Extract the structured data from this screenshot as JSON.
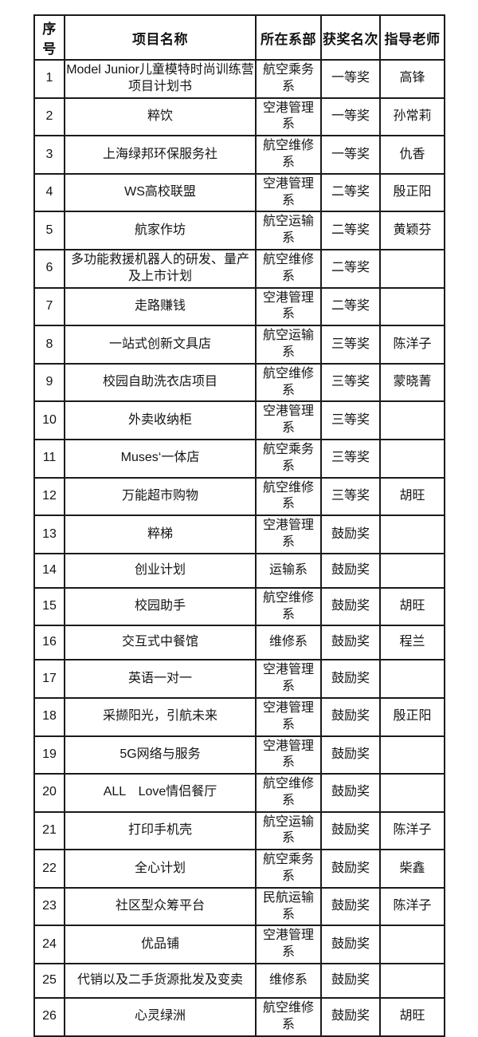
{
  "colors": {
    "border": "#1b1b1b",
    "background": "#ffffff",
    "text": "#141414"
  },
  "table": {
    "headers": {
      "no": "序号",
      "project": "项目名称",
      "dept": "所在系部",
      "award": "获奖名次",
      "teacher": "指导老师"
    },
    "rows": [
      {
        "no": "1",
        "project": "Model Junior儿童模特时尚训练营项目计划书",
        "dept": "航空乘务系",
        "award": "一等奖",
        "teacher": "高锋"
      },
      {
        "no": "2",
        "project": "粹饮",
        "dept": "空港管理系",
        "award": "一等奖",
        "teacher": "孙常莉"
      },
      {
        "no": "3",
        "project": "上海绿邦环保服务社",
        "dept": "航空维修系",
        "award": "一等奖",
        "teacher": "仇香"
      },
      {
        "no": "4",
        "project": "WS高校联盟",
        "dept": "空港管理系",
        "award": "二等奖",
        "teacher": "殷正阳"
      },
      {
        "no": "5",
        "project": "航家作坊",
        "dept": "航空运输系",
        "award": "二等奖",
        "teacher": "黄颖芬"
      },
      {
        "no": "6",
        "project": "多功能救援机器人的研发、量产及上市计划",
        "dept": "航空维修系",
        "award": "二等奖",
        "teacher": ""
      },
      {
        "no": "7",
        "project": "走路赚钱",
        "dept": "空港管理系",
        "award": "二等奖",
        "teacher": ""
      },
      {
        "no": "8",
        "project": "一站式创新文具店",
        "dept": "航空运输系",
        "award": "三等奖",
        "teacher": "陈洋子"
      },
      {
        "no": "9",
        "project": "校园自助洗衣店项目",
        "dept": "航空维修系",
        "award": "三等奖",
        "teacher": "蒙晓菁"
      },
      {
        "no": "10",
        "project": "外卖收纳柜",
        "dept": "空港管理系",
        "award": "三等奖",
        "teacher": ""
      },
      {
        "no": "11",
        "project": "Muses‘一体店",
        "dept": "航空乘务系",
        "award": "三等奖",
        "teacher": ""
      },
      {
        "no": "12",
        "project": "万能超市购物",
        "dept": "航空维修系",
        "award": "三等奖",
        "teacher": "胡旺"
      },
      {
        "no": "13",
        "project": "粹梯",
        "dept": "空港管理系",
        "award": "鼓励奖",
        "teacher": ""
      },
      {
        "no": "14",
        "project": "创业计划",
        "dept": "运输系",
        "award": "鼓励奖",
        "teacher": ""
      },
      {
        "no": "15",
        "project": "校园助手",
        "dept": "航空维修系",
        "award": "鼓励奖",
        "teacher": "胡旺"
      },
      {
        "no": "16",
        "project": "交互式中餐馆",
        "dept": "维修系",
        "award": "鼓励奖",
        "teacher": "程兰"
      },
      {
        "no": "17",
        "project": "英语一对一",
        "dept": "空港管理系",
        "award": "鼓励奖",
        "teacher": ""
      },
      {
        "no": "18",
        "project": "采撷阳光，引航未来",
        "dept": "空港管理系",
        "award": "鼓励奖",
        "teacher": "殷正阳"
      },
      {
        "no": "19",
        "project": "5G网络与服务",
        "dept": "空港管理系",
        "award": "鼓励奖",
        "teacher": ""
      },
      {
        "no": "20",
        "project": "ALL　Love情侣餐厅",
        "dept": "航空维修系",
        "award": "鼓励奖",
        "teacher": ""
      },
      {
        "no": "21",
        "project": "打印手机壳",
        "dept": "航空运输系",
        "award": "鼓励奖",
        "teacher": "陈洋子"
      },
      {
        "no": "22",
        "project": "全心计划",
        "dept": "航空乘务系",
        "award": "鼓励奖",
        "teacher": "柴鑫"
      },
      {
        "no": "23",
        "project": "社区型众筹平台",
        "dept": "民航运输系",
        "award": "鼓励奖",
        "teacher": "陈洋子"
      },
      {
        "no": "24",
        "project": "优品铺",
        "dept": "空港管理系",
        "award": "鼓励奖",
        "teacher": ""
      },
      {
        "no": "25",
        "project": "代销以及二手货源批发及变卖",
        "dept": "维修系",
        "award": "鼓励奖",
        "teacher": ""
      },
      {
        "no": "26",
        "project": "心灵绿洲",
        "dept": "航空维修系",
        "award": "鼓励奖",
        "teacher": "胡旺"
      }
    ]
  }
}
